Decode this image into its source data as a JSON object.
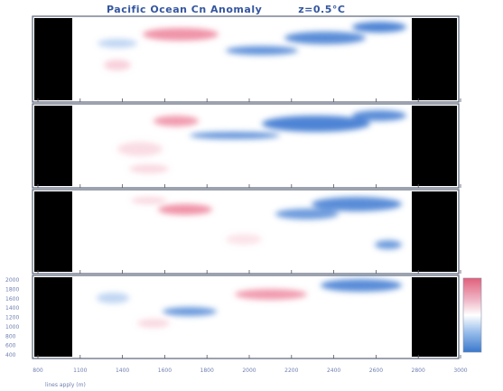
{
  "title": "Pacific Ocean Cn Anomaly",
  "subtitle": "z=0.5°C",
  "chart_data": {
    "type": "heatmap",
    "title": "Pacific Ocean Cn Anomaly",
    "subtitle": "z=0.5°C",
    "panels": 4,
    "x_tick_labels": [
      "800",
      "1100",
      "1400",
      "1600",
      "1800",
      "2000",
      "2200",
      "2400",
      "2600",
      "2800",
      "3000"
    ],
    "y_tick_labels": [
      "400",
      "600",
      "800",
      "1000",
      "1200",
      "1400",
      "1600",
      "1800",
      "2000"
    ],
    "colorbar": [
      "#e0607a",
      "#f0b8c8",
      "#ffffff",
      "#9cc0ec",
      "#3a78cc"
    ],
    "bottom_note": "lines apply (m)",
    "ylim": [
      400,
      2000
    ]
  },
  "colors": {
    "positive": "#e64d6e",
    "negative": "#2e6fce",
    "mask": "#000000",
    "frame": "#4a5568"
  }
}
